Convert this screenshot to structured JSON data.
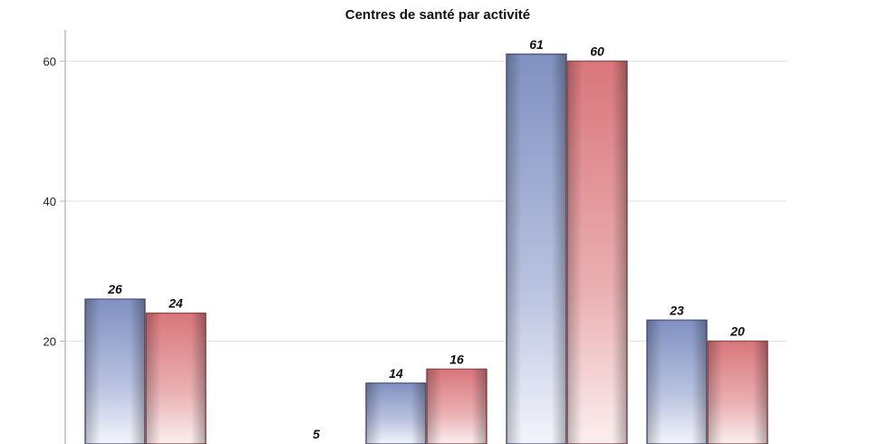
{
  "chart_data": {
    "type": "bar",
    "title": "Centres de santé par activité",
    "categories": [
      "",
      "",
      "",
      "",
      ""
    ],
    "series": [
      {
        "values": [
          26,
          null,
          14,
          61,
          23
        ],
        "color": "#7c89b8"
      },
      {
        "values": [
          24,
          5,
          16,
          60,
          20
        ],
        "color": "#d97a7e"
      }
    ],
    "yticks": [
      20,
      40,
      60
    ],
    "ylim_visible": [
      5.3,
      65
    ],
    "grid": true,
    "data_labels": true
  }
}
